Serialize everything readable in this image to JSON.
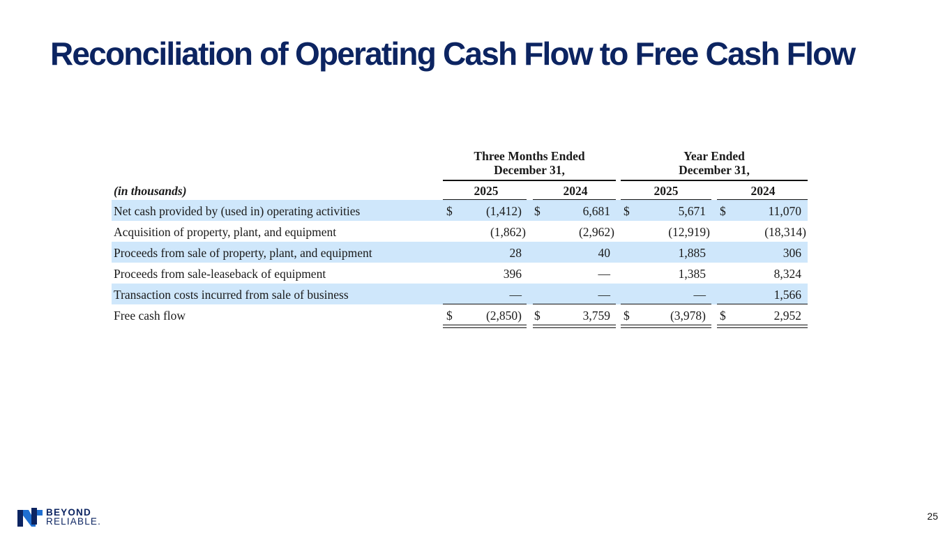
{
  "title": "Reconciliation of Operating Cash Flow to Free Cash Flow",
  "table": {
    "group_headers": [
      {
        "line1": "Three Months Ended",
        "line2": "December 31,"
      },
      {
        "line1": "Year Ended",
        "line2": "December 31,"
      }
    ],
    "units_label": "(in thousands)",
    "years": [
      "2025",
      "2024",
      "2025",
      "2024"
    ],
    "currency_symbol": "$",
    "rows": [
      {
        "label": "Net cash provided by (used in) operating activities",
        "values": [
          "(1,412)",
          "6,681",
          "5,671",
          "11,070"
        ],
        "highlighted": true,
        "dollar_signs": true
      },
      {
        "label": "Acquisition of property, plant, and equipment",
        "values": [
          "(1,862)",
          "(2,962)",
          "(12,919)",
          "(18,314)"
        ],
        "highlighted": false,
        "dollar_signs": false
      },
      {
        "label": "Proceeds from sale of property, plant, and equipment",
        "values": [
          "28",
          "40",
          "1,885",
          "306"
        ],
        "highlighted": true,
        "dollar_signs": false
      },
      {
        "label": "Proceeds from sale-leaseback of equipment",
        "values": [
          "396",
          "—",
          "1,385",
          "8,324"
        ],
        "highlighted": false,
        "dollar_signs": false
      },
      {
        "label": "Transaction costs incurred from sale of business",
        "values": [
          "—",
          "—",
          "—",
          "1,566"
        ],
        "highlighted": true,
        "dollar_signs": false
      },
      {
        "label": "Free cash flow",
        "values": [
          "(2,850)",
          "3,759",
          "(3,978)",
          "2,952"
        ],
        "highlighted": false,
        "dollar_signs": true
      }
    ]
  },
  "footer": {
    "logo_line1": "BEYOND",
    "logo_line2": "RELIABLE.",
    "logo_icon": "beyond-reliable-logo-icon",
    "page_number": "25"
  },
  "colors": {
    "title": "#0c2461",
    "row_highlight": "#cfe7fb",
    "logo_blue": "#1f6fd1",
    "logo_navy": "#0c2461"
  }
}
